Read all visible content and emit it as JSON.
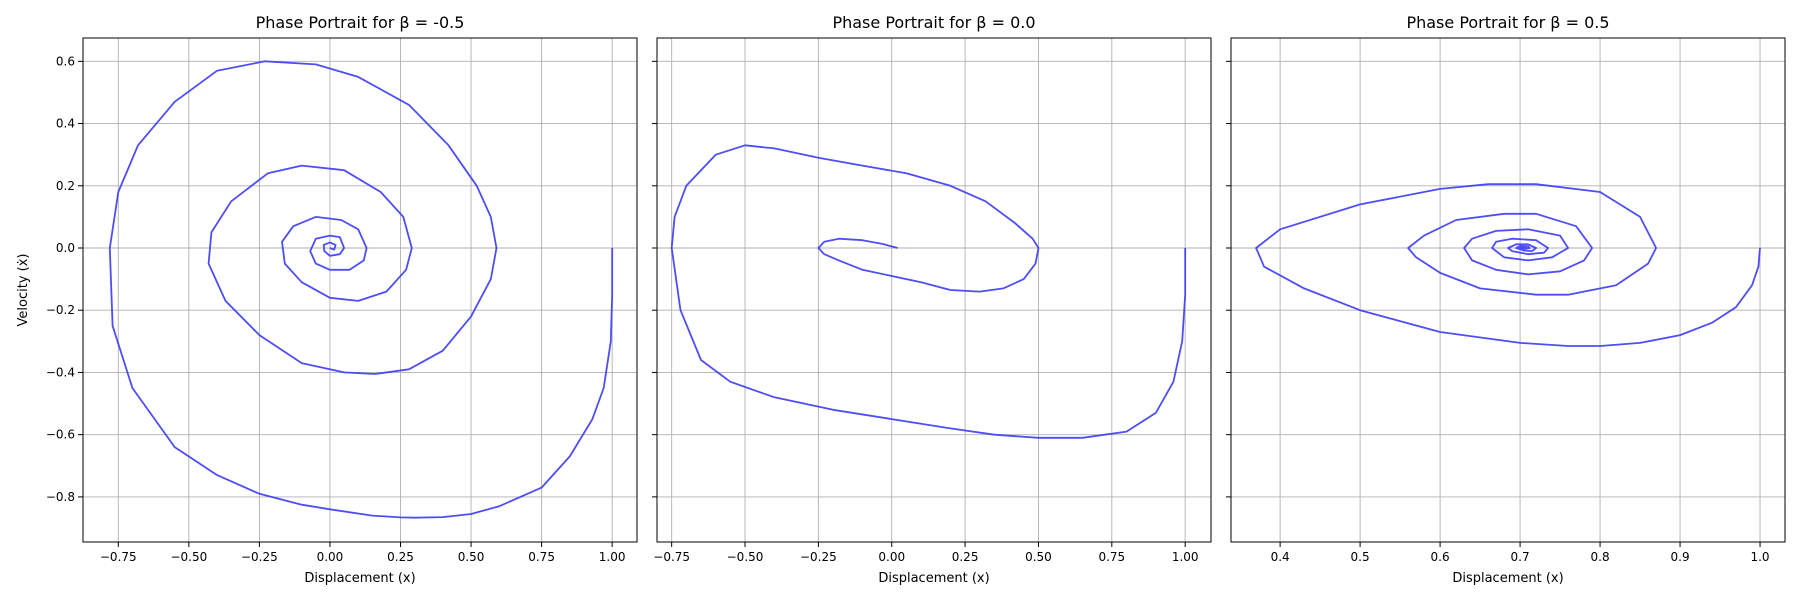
{
  "figure": {
    "line_color": "#3b3bf5",
    "grid_color": "#b0b0b0"
  },
  "chart_data": [
    {
      "type": "line",
      "title": "Phase Portrait for β = -0.5",
      "xlabel": "Displacement (x)",
      "ylabel": "Velocity (ẋ)",
      "xlim": [
        -0.875,
        1.088
      ],
      "ylim": [
        -0.945,
        0.675
      ],
      "xticks": [
        -0.75,
        -0.5,
        -0.25,
        0.0,
        0.25,
        0.5,
        0.75,
        1.0
      ],
      "xtick_labels": [
        "−0.75",
        "−0.50",
        "−0.25",
        "0.00",
        "0.25",
        "0.50",
        "0.75",
        "1.00"
      ],
      "yticks": [
        -0.8,
        -0.6,
        -0.4,
        -0.2,
        0.0,
        0.2,
        0.4,
        0.6
      ],
      "ytick_labels": [
        "−0.8",
        "−0.6",
        "−0.4",
        "−0.2",
        "0.0",
        "0.2",
        "0.4",
        "0.6"
      ],
      "grid": true,
      "series": [
        {
          "x": [
            1.0,
            1.0,
            0.995,
            0.97,
            0.93,
            0.85,
            0.75,
            0.6,
            0.5,
            0.4,
            0.3,
            0.25,
            0.15,
            0.0,
            -0.1,
            -0.25,
            -0.4,
            -0.55,
            -0.7,
            -0.77,
            -0.78,
            -0.75,
            -0.68,
            -0.55,
            -0.4,
            -0.23,
            -0.05,
            0.1,
            0.28,
            0.42,
            0.52,
            0.57,
            0.59,
            0.57,
            0.5,
            0.4,
            0.28,
            0.16,
            0.05,
            -0.1,
            -0.25,
            -0.37,
            -0.43,
            -0.42,
            -0.35,
            -0.22,
            -0.1,
            0.05,
            0.18,
            0.26,
            0.29,
            0.27,
            0.2,
            0.1,
            0.0,
            -0.1,
            -0.16,
            -0.17,
            -0.13,
            -0.05,
            0.04,
            0.1,
            0.13,
            0.12,
            0.07,
            0.0,
            -0.05,
            -0.07,
            -0.05,
            0.0,
            0.035,
            0.05,
            0.035,
            0.0,
            -0.02,
            -0.022,
            0.0,
            0.02,
            0.015,
            0.0
          ],
          "y": [
            0.0,
            -0.15,
            -0.3,
            -0.45,
            -0.55,
            -0.67,
            -0.77,
            -0.83,
            -0.855,
            -0.865,
            -0.867,
            -0.866,
            -0.86,
            -0.84,
            -0.825,
            -0.79,
            -0.73,
            -0.64,
            -0.45,
            -0.25,
            0.0,
            0.18,
            0.33,
            0.47,
            0.57,
            0.6,
            0.59,
            0.55,
            0.46,
            0.33,
            0.2,
            0.1,
            0.0,
            -0.1,
            -0.22,
            -0.33,
            -0.39,
            -0.405,
            -0.4,
            -0.37,
            -0.28,
            -0.17,
            -0.05,
            0.05,
            0.15,
            0.24,
            0.265,
            0.25,
            0.18,
            0.1,
            0.0,
            -0.07,
            -0.14,
            -0.17,
            -0.16,
            -0.11,
            -0.05,
            0.02,
            0.07,
            0.1,
            0.09,
            0.06,
            0.0,
            -0.04,
            -0.07,
            -0.07,
            -0.05,
            -0.01,
            0.03,
            0.04,
            0.035,
            0.0,
            -0.02,
            -0.025,
            -0.01,
            0.01,
            0.018,
            0.01,
            -0.005,
            0.0
          ]
        }
      ]
    },
    {
      "type": "line",
      "title": "Phase Portrait for β = 0.0",
      "xlabel": "Displacement (x)",
      "ylabel": "",
      "xlim": [
        -0.8,
        1.088
      ],
      "ylim": [
        -0.945,
        0.675
      ],
      "xticks": [
        -0.75,
        -0.5,
        -0.25,
        0.0,
        0.25,
        0.5,
        0.75,
        1.0
      ],
      "xtick_labels": [
        "−0.75",
        "−0.50",
        "−0.25",
        "0.00",
        "0.25",
        "0.50",
        "0.75",
        "1.00"
      ],
      "yticks": [
        -0.8,
        -0.6,
        -0.4,
        -0.2,
        0.0,
        0.2,
        0.4,
        0.6
      ],
      "ytick_labels": [],
      "grid": true,
      "series": [
        {
          "x": [
            1.0,
            1.0,
            0.99,
            0.96,
            0.9,
            0.8,
            0.65,
            0.5,
            0.35,
            0.2,
            0.0,
            -0.2,
            -0.4,
            -0.55,
            -0.65,
            -0.72,
            -0.75,
            -0.74,
            -0.7,
            -0.6,
            -0.5,
            -0.4,
            -0.25,
            -0.1,
            0.05,
            0.2,
            0.32,
            0.42,
            0.48,
            0.5,
            0.49,
            0.45,
            0.38,
            0.3,
            0.2,
            0.1,
            0.0,
            -0.1,
            -0.18,
            -0.23,
            -0.25,
            -0.23,
            -0.18,
            -0.1,
            -0.03,
            0.02
          ],
          "y": [
            0.0,
            -0.15,
            -0.3,
            -0.43,
            -0.53,
            -0.59,
            -0.61,
            -0.61,
            -0.6,
            -0.58,
            -0.55,
            -0.52,
            -0.48,
            -0.43,
            -0.36,
            -0.2,
            0.0,
            0.1,
            0.2,
            0.3,
            0.33,
            0.32,
            0.29,
            0.265,
            0.24,
            0.2,
            0.15,
            0.08,
            0.03,
            0.0,
            -0.05,
            -0.1,
            -0.13,
            -0.14,
            -0.135,
            -0.11,
            -0.09,
            -0.07,
            -0.04,
            -0.02,
            0.0,
            0.02,
            0.03,
            0.025,
            0.013,
            0.0
          ]
        }
      ]
    },
    {
      "type": "line",
      "title": "Phase Portrait for β = 0.5",
      "xlabel": "Displacement (x)",
      "ylabel": "",
      "xlim": [
        0.3386,
        1.0312
      ],
      "ylim": [
        -0.945,
        0.675
      ],
      "xticks": [
        0.4,
        0.5,
        0.6,
        0.7,
        0.8,
        0.9,
        1.0
      ],
      "xtick_labels": [
        "0.4",
        "0.5",
        "0.6",
        "0.7",
        "0.8",
        "0.9",
        "1.0"
      ],
      "yticks": [
        -0.8,
        -0.6,
        -0.4,
        -0.2,
        0.0,
        0.2,
        0.4,
        0.6
      ],
      "ytick_labels": [],
      "grid": true,
      "series": [
        {
          "x": [
            1.0,
            0.998,
            0.99,
            0.97,
            0.94,
            0.9,
            0.85,
            0.8,
            0.76,
            0.7,
            0.6,
            0.5,
            0.43,
            0.38,
            0.37,
            0.4,
            0.5,
            0.6,
            0.66,
            0.72,
            0.8,
            0.85,
            0.87,
            0.86,
            0.82,
            0.76,
            0.72,
            0.65,
            0.6,
            0.57,
            0.56,
            0.58,
            0.62,
            0.68,
            0.72,
            0.77,
            0.79,
            0.78,
            0.75,
            0.71,
            0.67,
            0.64,
            0.63,
            0.64,
            0.67,
            0.71,
            0.75,
            0.76,
            0.74,
            0.71,
            0.68,
            0.665,
            0.67,
            0.69,
            0.72,
            0.735,
            0.73,
            0.71,
            0.69,
            0.685,
            0.695,
            0.71,
            0.72,
            0.715,
            0.705,
            0.695,
            0.7,
            0.71,
            0.712,
            0.705,
            0.7,
            0.705,
            0.708,
            0.706
          ],
          "y": [
            0.0,
            -0.06,
            -0.12,
            -0.19,
            -0.24,
            -0.28,
            -0.305,
            -0.315,
            -0.315,
            -0.305,
            -0.27,
            -0.2,
            -0.13,
            -0.06,
            0.0,
            0.06,
            0.14,
            0.19,
            0.205,
            0.205,
            0.18,
            0.1,
            0.0,
            -0.05,
            -0.12,
            -0.15,
            -0.15,
            -0.13,
            -0.08,
            -0.03,
            0.0,
            0.04,
            0.09,
            0.11,
            0.11,
            0.07,
            0.0,
            -0.04,
            -0.075,
            -0.085,
            -0.07,
            -0.04,
            0.0,
            0.03,
            0.055,
            0.06,
            0.04,
            0.0,
            -0.03,
            -0.04,
            -0.03,
            0.0,
            0.02,
            0.03,
            0.025,
            0.0,
            -0.015,
            -0.02,
            -0.01,
            0.0,
            0.012,
            0.012,
            0.0,
            -0.01,
            -0.008,
            0.0,
            0.006,
            0.005,
            0.0,
            -0.004,
            0.0,
            0.003,
            0.0,
            0.0
          ]
        }
      ]
    }
  ]
}
